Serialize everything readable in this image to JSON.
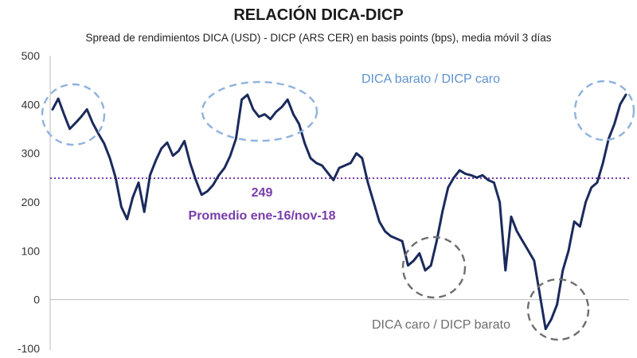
{
  "colors": {
    "line": "#1b2a5c",
    "average": "#7a3cab",
    "circle_blue": "#8fb2dd",
    "circle_gray": "#6e6e6e",
    "text_blue": "#5f93cf",
    "text_gray": "#6e6e6e",
    "axis": "#bdbdbd"
  },
  "chart_data": {
    "type": "line",
    "title": "RELACIÓN DICA-DICP",
    "subtitle": "Spread de rendimientos DICA (USD)  - DICP (ARS CER) en basis points (bps), media móvil 3 días",
    "xlabel": "",
    "ylabel": "",
    "ylim": [
      -100,
      500
    ],
    "yticks": [
      -100,
      0,
      100,
      200,
      300,
      400,
      500
    ],
    "yticklabels": [
      "-100",
      "0",
      "100",
      "200",
      "300",
      "400",
      "500"
    ],
    "grid": false,
    "x_index_range": [
      0,
      100
    ],
    "series": [
      {
        "x": [
          0,
          1,
          2,
          3,
          4,
          5,
          6,
          7,
          8,
          9,
          10,
          11,
          12,
          13,
          14,
          15,
          16,
          17,
          18,
          19,
          20,
          21,
          22,
          23,
          24,
          25,
          26,
          27,
          28,
          29,
          30,
          31,
          32,
          33,
          34,
          35,
          36,
          37,
          38,
          39,
          40,
          41,
          42,
          43,
          44,
          45,
          46,
          47,
          48,
          49,
          50,
          51,
          52,
          53,
          54,
          55,
          56,
          57,
          58,
          59,
          60,
          61,
          62,
          63,
          64,
          65,
          66,
          67,
          68,
          69,
          70,
          71,
          72,
          73,
          74,
          75,
          76,
          77,
          78,
          79,
          80,
          81,
          82,
          83,
          84,
          85,
          86,
          87,
          88,
          89,
          90,
          91,
          92,
          93,
          94,
          95,
          96,
          97,
          98,
          99,
          100
        ],
        "values": [
          390,
          412,
          380,
          350,
          362,
          375,
          390,
          362,
          340,
          320,
          290,
          250,
          190,
          165,
          210,
          240,
          180,
          255,
          285,
          310,
          322,
          295,
          305,
          325,
          280,
          245,
          215,
          222,
          235,
          255,
          270,
          295,
          330,
          410,
          420,
          390,
          375,
          380,
          370,
          385,
          395,
          410,
          380,
          360,
          320,
          290,
          280,
          275,
          260,
          245,
          270,
          275,
          280,
          300,
          290,
          240,
          200,
          160,
          140,
          130,
          125,
          120,
          70,
          80,
          95,
          60,
          70,
          120,
          180,
          230,
          250,
          265,
          258,
          255,
          250,
          255,
          245,
          240,
          200,
          60,
          170,
          140,
          120,
          100,
          80,
          10,
          -60,
          -40,
          -10,
          60,
          100,
          160,
          150,
          200,
          230,
          240,
          280,
          330,
          360,
          400,
          420
        ]
      }
    ],
    "reference_line": {
      "value": 249,
      "value_label": "249",
      "label": "Promedio ene-16/nov-18"
    },
    "annotations": {
      "dica_barato": "DICA barato / DICP caro",
      "dica_caro": "DICA caro / DICP barato"
    }
  }
}
